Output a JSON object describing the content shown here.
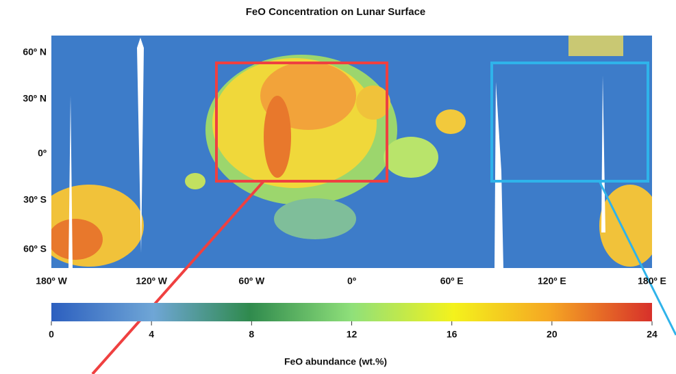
{
  "title": "FeO Concentration on Lunar Surface",
  "latitude_labels": [
    "60º N",
    "30º N",
    "0º",
    "30º S",
    "60º S"
  ],
  "longitude_labels": [
    "180º W",
    "120º W",
    "60º W",
    "0º",
    "60º E",
    "120º E",
    "180º E"
  ],
  "colorbar": {
    "label": "FeO abundance (wt.%)",
    "range": [
      0,
      24
    ],
    "ticks": [
      0,
      4,
      8,
      12,
      16,
      20,
      24
    ]
  }
}
